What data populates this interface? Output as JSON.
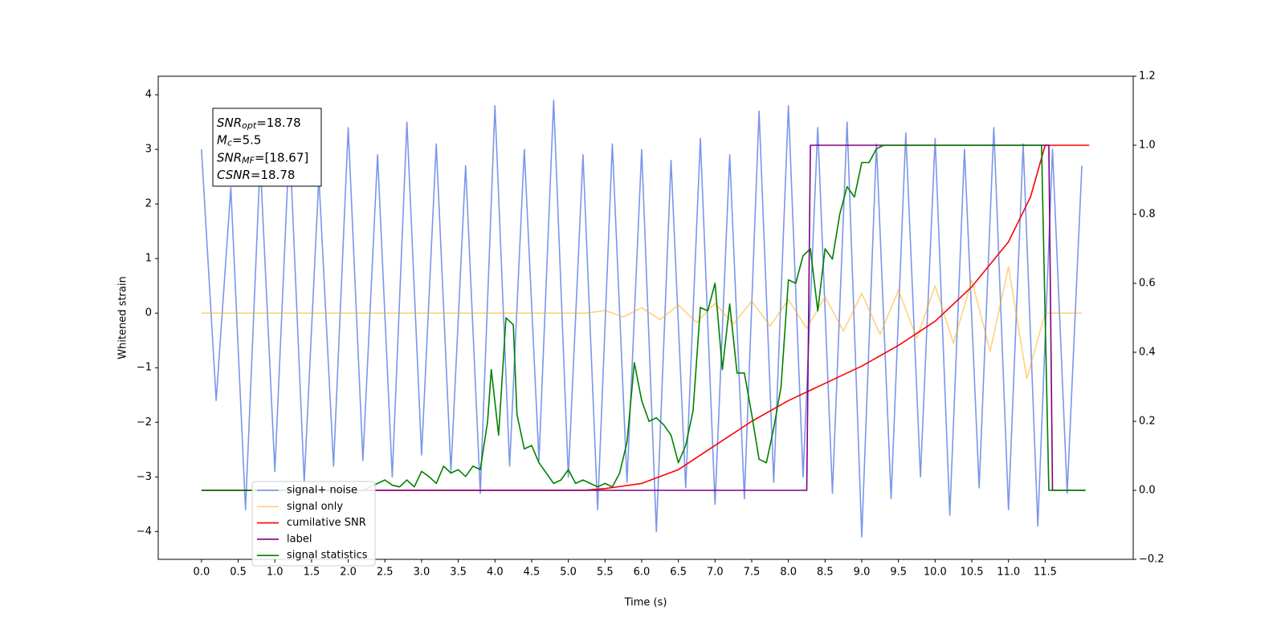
{
  "chart_data": {
    "type": "line",
    "x_label": "Time (s)",
    "y_label": "Whitened strain",
    "xlim": [
      -0.59,
      12.7
    ],
    "ylim": [
      -4.51,
      4.34
    ],
    "y2lim": [
      -0.2,
      1.2
    ],
    "xticks": [
      {
        "value": 0,
        "label": "0.0"
      },
      0.5,
      {
        "value": 1,
        "label": "1.0"
      },
      1.5,
      {
        "value": 2,
        "label": "2.0"
      },
      2.5,
      {
        "value": 3,
        "label": "3.0"
      },
      3.5,
      {
        "value": 4,
        "label": "4.0"
      },
      4.5,
      {
        "value": 5,
        "label": "5.0"
      },
      5.5,
      {
        "value": 6,
        "label": "6.0"
      },
      6.5,
      {
        "value": 7,
        "label": "7.0"
      },
      7.5,
      {
        "value": 8,
        "label": "8.0"
      },
      8.5,
      {
        "value": 9,
        "label": "9.0"
      },
      9.5,
      {
        "value": 10,
        "label": "10.0"
      },
      10.5,
      {
        "value": 11,
        "label": "11.0"
      },
      11.5
    ],
    "yticks": [
      {
        "value": -4,
        "label": "−4"
      },
      {
        "value": -3,
        "label": "−3"
      },
      {
        "value": -2,
        "label": "−2"
      },
      {
        "value": -1,
        "label": "−1"
      },
      0,
      1,
      2,
      3,
      4
    ],
    "y2ticks": [
      {
        "value": -0.2,
        "label": "−0.2"
      },
      {
        "value": 0,
        "label": "0.0"
      },
      0.2,
      0.4,
      0.6,
      0.8,
      {
        "value": 1,
        "label": "1.0"
      },
      1.2
    ],
    "annotation": [
      {
        "text": "SNR",
        "sub": "opt",
        "value": "=18.78"
      },
      {
        "text": "M",
        "sub": "c",
        "value": "=5.5"
      },
      {
        "text": "SNR",
        "sub": "MF",
        "value": "=[18.67]"
      },
      {
        "text": "CSNR",
        "value": "=18.78"
      }
    ],
    "series": [
      {
        "name": "signal+ noise",
        "color": "#4169e1",
        "alpha": 0.7,
        "axis": "y",
        "x": [
          0,
          0.2,
          0.4,
          0.6,
          0.8,
          1,
          1.2,
          1.4,
          1.6,
          1.8,
          2,
          2.2,
          2.4,
          2.6,
          2.8,
          3,
          3.2,
          3.4,
          3.6,
          3.8,
          4,
          4.2,
          4.4,
          4.6,
          4.8,
          5,
          5.2,
          5.4,
          5.6,
          5.8,
          6,
          6.2,
          6.4,
          6.6,
          6.8,
          7,
          7.2,
          7.4,
          7.6,
          7.8,
          8,
          8.2,
          8.4,
          8.6,
          8.8,
          9,
          9.2,
          9.4,
          9.6,
          9.8,
          10,
          10.2,
          10.4,
          10.6,
          10.8,
          11,
          11.2,
          11.4,
          11.6,
          11.8,
          12
        ],
        "values": [
          3.0,
          -1.6,
          2.3,
          -3.6,
          2.8,
          -2.9,
          3.2,
          -3.1,
          2.5,
          -2.8,
          3.4,
          -2.7,
          2.9,
          -3.0,
          3.5,
          -2.6,
          3.1,
          -2.9,
          2.7,
          -3.3,
          3.8,
          -2.8,
          3.0,
          -2.7,
          3.9,
          -3.0,
          2.9,
          -3.6,
          3.1,
          -3.1,
          3.0,
          -4.0,
          2.8,
          -3.2,
          3.2,
          -3.5,
          2.9,
          -3.4,
          3.7,
          -3.1,
          3.8,
          -3.0,
          3.4,
          -3.3,
          3.5,
          -4.1,
          3.1,
          -3.4,
          3.3,
          -3.0,
          3.2,
          -3.7,
          3.0,
          -3.2,
          3.4,
          -3.6,
          3.1,
          -3.9,
          3.0,
          -3.3,
          2.7
        ]
      },
      {
        "name": "signal only",
        "color": "#ffa500",
        "alpha": 0.5,
        "axis": "y",
        "x": [
          0,
          0.25,
          0.5,
          0.75,
          1,
          1.25,
          1.5,
          1.75,
          2,
          2.25,
          2.5,
          2.75,
          3,
          3.25,
          3.5,
          3.75,
          4,
          4.25,
          4.5,
          4.75,
          5,
          5.25,
          5.5,
          5.75,
          6,
          6.25,
          6.5,
          6.75,
          7,
          7.25,
          7.5,
          7.75,
          8,
          8.25,
          8.5,
          8.75,
          9,
          9.25,
          9.5,
          9.75,
          10,
          10.25,
          10.5,
          10.75,
          11,
          11.25,
          11.5,
          11.75,
          12
        ],
        "values": [
          0,
          0,
          0,
          0,
          0,
          0,
          0,
          0,
          0,
          0,
          0,
          0,
          0,
          0,
          0,
          0,
          0,
          0,
          0,
          0,
          0,
          0,
          0.05,
          -0.07,
          0.1,
          -0.12,
          0.15,
          -0.17,
          0.18,
          -0.2,
          0.22,
          -0.24,
          0.25,
          -0.28,
          0.3,
          -0.33,
          0.36,
          -0.39,
          0.42,
          -0.46,
          0.5,
          -0.55,
          0.6,
          -0.7,
          0.85,
          -1.2,
          0,
          0,
          0
        ]
      },
      {
        "name": "cumilative SNR",
        "color": "#ff0000",
        "alpha": 1,
        "axis": "y2",
        "x": [
          0,
          5.2,
          5.5,
          6,
          6.5,
          7,
          7.5,
          8,
          8.5,
          9,
          9.5,
          10,
          10.5,
          11,
          11.3,
          11.5,
          12.1
        ],
        "values": [
          0,
          0,
          0.005,
          0.02,
          0.06,
          0.13,
          0.2,
          0.26,
          0.31,
          0.36,
          0.42,
          0.49,
          0.59,
          0.72,
          0.85,
          1.0,
          1.0
        ]
      },
      {
        "name": "label",
        "color": "#800080",
        "alpha": 1,
        "axis": "y2",
        "x": [
          0,
          8.25,
          8.3,
          11.55,
          11.6,
          12.05
        ],
        "values": [
          0,
          0,
          1,
          1,
          0,
          0
        ]
      },
      {
        "name": "signal statistics",
        "color": "#008000",
        "alpha": 1,
        "axis": "y2",
        "x": [
          0,
          2.2,
          2.4,
          2.5,
          2.6,
          2.7,
          2.8,
          2.9,
          3.0,
          3.1,
          3.2,
          3.3,
          3.4,
          3.5,
          3.6,
          3.7,
          3.8,
          3.9,
          3.95,
          4.05,
          4.15,
          4.25,
          4.3,
          4.4,
          4.5,
          4.6,
          4.7,
          4.8,
          4.9,
          5.0,
          5.1,
          5.2,
          5.3,
          5.4,
          5.5,
          5.6,
          5.7,
          5.8,
          5.9,
          6.0,
          6.1,
          6.2,
          6.3,
          6.4,
          6.5,
          6.6,
          6.7,
          6.8,
          6.9,
          7.0,
          7.1,
          7.2,
          7.3,
          7.4,
          7.5,
          7.6,
          7.7,
          7.8,
          7.9,
          8.0,
          8.1,
          8.2,
          8.3,
          8.4,
          8.5,
          8.6,
          8.7,
          8.8,
          8.9,
          9.0,
          9.1,
          9.2,
          9.3,
          11.45,
          11.5,
          11.55,
          12.05
        ],
        "values": [
          0,
          0,
          0.02,
          0.03,
          0.015,
          0.01,
          0.03,
          0.01,
          0.055,
          0.04,
          0.02,
          0.07,
          0.05,
          0.06,
          0.04,
          0.07,
          0.06,
          0.2,
          0.35,
          0.16,
          0.5,
          0.48,
          0.22,
          0.12,
          0.13,
          0.08,
          0.05,
          0.02,
          0.03,
          0.06,
          0.02,
          0.03,
          0.02,
          0.01,
          0.02,
          0.01,
          0.05,
          0.14,
          0.37,
          0.26,
          0.2,
          0.21,
          0.19,
          0.16,
          0.08,
          0.13,
          0.23,
          0.53,
          0.52,
          0.6,
          0.35,
          0.54,
          0.34,
          0.34,
          0.22,
          0.09,
          0.08,
          0.18,
          0.3,
          0.61,
          0.6,
          0.68,
          0.7,
          0.52,
          0.7,
          0.67,
          0.8,
          0.88,
          0.85,
          0.95,
          0.95,
          0.99,
          1.0,
          1.0,
          0.5,
          0.0,
          0.0
        ]
      }
    ]
  }
}
